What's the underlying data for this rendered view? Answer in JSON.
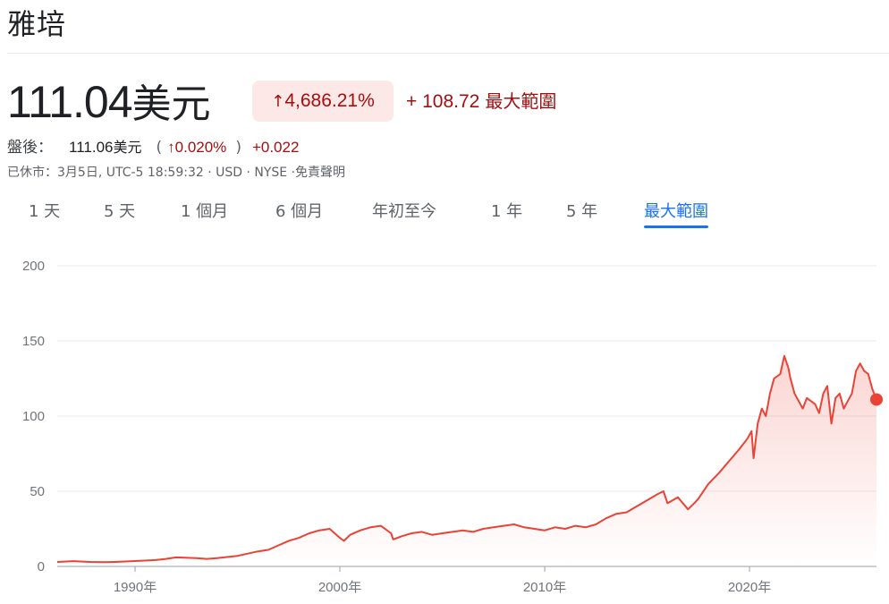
{
  "title": "雅培",
  "price": {
    "value": "111.04",
    "currency": "美元"
  },
  "change": {
    "arrow": "↑",
    "percent": "4,686.21%",
    "absolute": "+ 108.72",
    "range_label": "最大範圍"
  },
  "after_hours": {
    "label": "盤後：",
    "price": "111.06",
    "currency": "美元",
    "open_paren": "(",
    "arrow": "↑",
    "percent": "0.020%",
    "close_paren": ")",
    "change": "+0.022"
  },
  "meta": "已休市：3月5日, UTC-5 18:59:32 · USD · NYSE ·免責聲明",
  "tabs": [
    {
      "label": "1 天",
      "active": false
    },
    {
      "label": "5 天",
      "active": false
    },
    {
      "label": "1 個月",
      "active": false
    },
    {
      "label": "6 個月",
      "active": false
    },
    {
      "label": "年初至今",
      "active": false
    },
    {
      "label": "1 年",
      "active": false
    },
    {
      "label": "5 年",
      "active": false
    },
    {
      "label": "最大範圍",
      "active": true
    }
  ],
  "colors": {
    "line": "#ea4335",
    "accent": "#1a73e8",
    "negative_text": "#a50e0e",
    "badge_bg": "#fce8e6"
  },
  "chart_data": {
    "type": "area",
    "y_ticks": [
      0,
      50,
      100,
      150,
      200
    ],
    "ylim": [
      0,
      200
    ],
    "xlim": [
      1986.2,
      2026.2
    ],
    "x_ticks": [
      {
        "value": 1990,
        "label": "1990年"
      },
      {
        "value": 2000,
        "label": "2000年"
      },
      {
        "value": 2010,
        "label": "2010年"
      },
      {
        "value": 2020,
        "label": "2020年"
      }
    ],
    "last_point": {
      "x": 2026.2,
      "y": 111.04
    },
    "series": [
      {
        "x": [
          1986.2,
          1987.0,
          1987.8,
          1988.5,
          1989.0,
          1990.0,
          1991.0,
          1991.5,
          1992.0,
          1993.0,
          1993.5,
          1994.0,
          1995.0,
          1995.5,
          1996.0,
          1996.5,
          1997.0,
          1997.5,
          1998.0,
          1998.5,
          1999.0,
          1999.5,
          2000.0,
          2000.2,
          2000.5,
          2001.0,
          2001.5,
          2002.0,
          2002.5,
          2002.6,
          2003.0,
          2003.5,
          2004.0,
          2004.5,
          2005.0,
          2005.5,
          2006.0,
          2006.5,
          2007.0,
          2007.5,
          2008.0,
          2008.5,
          2009.0,
          2009.5,
          2010.0,
          2010.5,
          2011.0,
          2011.5,
          2012.0,
          2012.5,
          2013.0,
          2013.5,
          2014.0,
          2014.5,
          2015.0,
          2015.5,
          2015.8,
          2016.0,
          2016.5,
          2017.0,
          2017.3,
          2017.5,
          2018.0,
          2018.5,
          2019.0,
          2019.5,
          2019.9,
          2020.1,
          2020.2,
          2020.4,
          2020.6,
          2020.8,
          2021.0,
          2021.2,
          2021.5,
          2021.7,
          2021.9,
          2022.0,
          2022.2,
          2022.4,
          2022.6,
          2022.8,
          2023.0,
          2023.2,
          2023.4,
          2023.6,
          2023.8,
          2024.0,
          2024.2,
          2024.4,
          2024.6,
          2024.8,
          2025.0,
          2025.2,
          2025.4,
          2025.6,
          2025.8,
          2026.0,
          2026.2
        ],
        "y": [
          3,
          3.5,
          3,
          2.8,
          3,
          3.6,
          4.2,
          5,
          6,
          5.5,
          5,
          5.5,
          7,
          8.5,
          10,
          11,
          14,
          17,
          19,
          22,
          24,
          25,
          19,
          17,
          21,
          24,
          26,
          27,
          22,
          18,
          20,
          22,
          23,
          21,
          22,
          23,
          24,
          23,
          25,
          26,
          27,
          28,
          26,
          25,
          24,
          26,
          25,
          27,
          26,
          28,
          32,
          35,
          36,
          40,
          44,
          48,
          50,
          42,
          46,
          38,
          42,
          45,
          55,
          62,
          70,
          78,
          85,
          90,
          72,
          95,
          105,
          100,
          115,
          125,
          128,
          140,
          132,
          125,
          115,
          110,
          105,
          112,
          110,
          108,
          102,
          115,
          120,
          95,
          112,
          115,
          105,
          110,
          115,
          130,
          135,
          130,
          128,
          118,
          111.04
        ]
      }
    ]
  }
}
